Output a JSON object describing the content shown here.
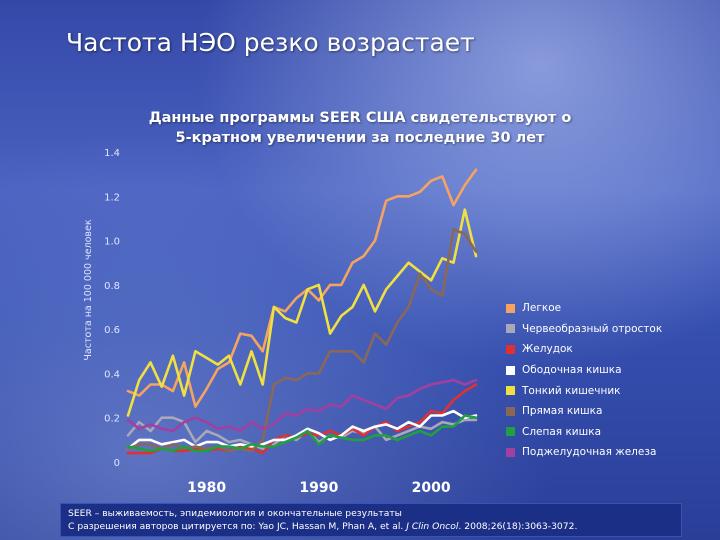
{
  "slide": {
    "title": "Частота НЭО резко возрастает",
    "subtitle_line1": "Данные программы SEER США свидетельствуют о",
    "subtitle_line2": "5-кратном увеличении за последние 30 лет"
  },
  "footer": {
    "line1": "SEER – выживаемость, эпидемиология и окончательные результаты",
    "line2_prefix": "С разрешения авторов цитируется по: Yao JC, Hassan M, Phan A, et al. ",
    "line2_journal": "J Clin Oncol",
    "line2_suffix": ". 2008;26(18):3063-3072."
  },
  "chart_data": {
    "type": "line",
    "ylabel": "Частота на 100 000 человек",
    "ylim": [
      0,
      1.4
    ],
    "yticks": [
      "0",
      "0.2",
      "0.4",
      "0.6",
      "0.8",
      "1.0",
      "1.2",
      "1.4"
    ],
    "xlim": [
      1973,
      2004
    ],
    "xticks": [
      {
        "value": 1980,
        "label": "1980"
      },
      {
        "value": 1990,
        "label": "1990"
      },
      {
        "value": 2000,
        "label": "2000"
      }
    ],
    "x": [
      1973,
      1974,
      1975,
      1976,
      1977,
      1978,
      1979,
      1980,
      1981,
      1982,
      1983,
      1984,
      1985,
      1986,
      1987,
      1988,
      1989,
      1990,
      1991,
      1992,
      1993,
      1994,
      1995,
      1996,
      1997,
      1998,
      1999,
      2000,
      2001,
      2002,
      2003,
      2004
    ],
    "series": [
      {
        "name": "Легкое",
        "color": "#f4a460",
        "values": [
          0.32,
          0.3,
          0.35,
          0.35,
          0.32,
          0.45,
          0.25,
          0.33,
          0.42,
          0.45,
          0.58,
          0.57,
          0.5,
          0.7,
          0.68,
          0.74,
          0.78,
          0.73,
          0.8,
          0.8,
          0.9,
          0.93,
          1.0,
          1.18,
          1.2,
          1.2,
          1.22,
          1.27,
          1.29,
          1.16,
          1.25,
          1.32
        ]
      },
      {
        "name": "Червеобразный отросток",
        "color": "#a8a8b8",
        "values": [
          0.12,
          0.18,
          0.14,
          0.2,
          0.2,
          0.18,
          0.09,
          0.14,
          0.12,
          0.09,
          0.1,
          0.08,
          0.06,
          0.08,
          0.12,
          0.1,
          0.14,
          0.09,
          0.12,
          0.11,
          0.14,
          0.13,
          0.16,
          0.1,
          0.12,
          0.14,
          0.16,
          0.15,
          0.18,
          0.17,
          0.19,
          0.19
        ]
      },
      {
        "name": "Желудок",
        "color": "#e03030",
        "values": [
          0.04,
          0.04,
          0.04,
          0.06,
          0.05,
          0.05,
          0.06,
          0.05,
          0.06,
          0.05,
          0.07,
          0.06,
          0.04,
          0.1,
          0.12,
          0.11,
          0.13,
          0.12,
          0.14,
          0.12,
          0.15,
          0.12,
          0.16,
          0.18,
          0.14,
          0.16,
          0.18,
          0.23,
          0.22,
          0.28,
          0.32,
          0.35
        ]
      },
      {
        "name": "Ободочная кишка",
        "color": "#ffffff",
        "values": [
          0.06,
          0.1,
          0.1,
          0.08,
          0.09,
          0.1,
          0.07,
          0.09,
          0.09,
          0.07,
          0.08,
          0.07,
          0.08,
          0.1,
          0.1,
          0.12,
          0.15,
          0.13,
          0.1,
          0.12,
          0.16,
          0.14,
          0.16,
          0.17,
          0.15,
          0.18,
          0.16,
          0.21,
          0.21,
          0.23,
          0.2,
          0.21
        ]
      },
      {
        "name": "Тонкий кишечник",
        "color": "#f0e040",
        "values": [
          0.21,
          0.37,
          0.45,
          0.34,
          0.48,
          0.3,
          0.5,
          0.47,
          0.44,
          0.48,
          0.35,
          0.5,
          0.35,
          0.7,
          0.65,
          0.63,
          0.78,
          0.8,
          0.58,
          0.66,
          0.7,
          0.8,
          0.68,
          0.78,
          0.84,
          0.9,
          0.86,
          0.82,
          0.92,
          0.9,
          1.14,
          0.93
        ]
      },
      {
        "name": "Прямая кишка",
        "color": "#8a6858",
        "values": [
          0.06,
          0.08,
          0.08,
          0.06,
          0.08,
          0.06,
          0.07,
          0.06,
          0.07,
          0.05,
          0.06,
          0.05,
          0.1,
          0.35,
          0.38,
          0.37,
          0.4,
          0.4,
          0.5,
          0.5,
          0.5,
          0.45,
          0.58,
          0.53,
          0.63,
          0.7,
          0.85,
          0.78,
          0.75,
          1.05,
          1.03,
          0.95
        ]
      },
      {
        "name": "Слепая кишка",
        "color": "#20a040",
        "values": [
          0.07,
          0.06,
          0.05,
          0.06,
          0.05,
          0.07,
          0.05,
          0.05,
          0.07,
          0.07,
          0.06,
          0.08,
          0.07,
          0.07,
          0.09,
          0.11,
          0.14,
          0.08,
          0.12,
          0.11,
          0.1,
          0.1,
          0.12,
          0.12,
          0.1,
          0.12,
          0.14,
          0.12,
          0.16,
          0.16,
          0.21,
          0.2
        ]
      },
      {
        "name": "Поджелудочная железа",
        "color": "#a040a0",
        "values": [
          0.19,
          0.15,
          0.17,
          0.15,
          0.14,
          0.18,
          0.2,
          0.18,
          0.15,
          0.16,
          0.14,
          0.18,
          0.15,
          0.17,
          0.22,
          0.21,
          0.24,
          0.23,
          0.26,
          0.25,
          0.3,
          0.28,
          0.26,
          0.24,
          0.29,
          0.3,
          0.33,
          0.35,
          0.36,
          0.37,
          0.35,
          0.37
        ]
      }
    ]
  }
}
